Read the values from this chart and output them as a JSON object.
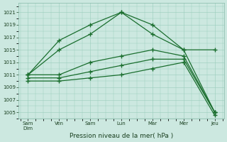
{
  "title": "Pression niveau de la mer( hPa )",
  "background_color": "#cce8e0",
  "grid_color": "#99ccbb",
  "line_color": "#1a6e2e",
  "x_labels": [
    "Sam\nDim",
    "Ven",
    "Sam",
    "Lun",
    "Mar",
    "Mer",
    "Jeu"
  ],
  "x_ticks": [
    0,
    1,
    2,
    3,
    4,
    5,
    6
  ],
  "ylim": [
    1004,
    1022.5
  ],
  "yticks": [
    1005,
    1007,
    1009,
    1011,
    1013,
    1015,
    1017,
    1019,
    1021
  ],
  "series1": [
    1011.0,
    1015.0,
    1017.5,
    1021.0,
    1017.5,
    1015.0,
    1005.0
  ],
  "series2": [
    1011.0,
    1016.5,
    1019.0,
    1021.0,
    1019.0,
    1015.0,
    1015.0
  ],
  "series3": [
    1011.0,
    1011.0,
    1013.0,
    1014.0,
    1015.0,
    1014.0,
    1005.0
  ],
  "series4": [
    1010.5,
    1010.5,
    1011.5,
    1012.5,
    1013.5,
    1013.5,
    1005.0
  ],
  "series5": [
    1010.0,
    1010.0,
    1010.5,
    1011.0,
    1012.0,
    1013.0,
    1004.5
  ]
}
